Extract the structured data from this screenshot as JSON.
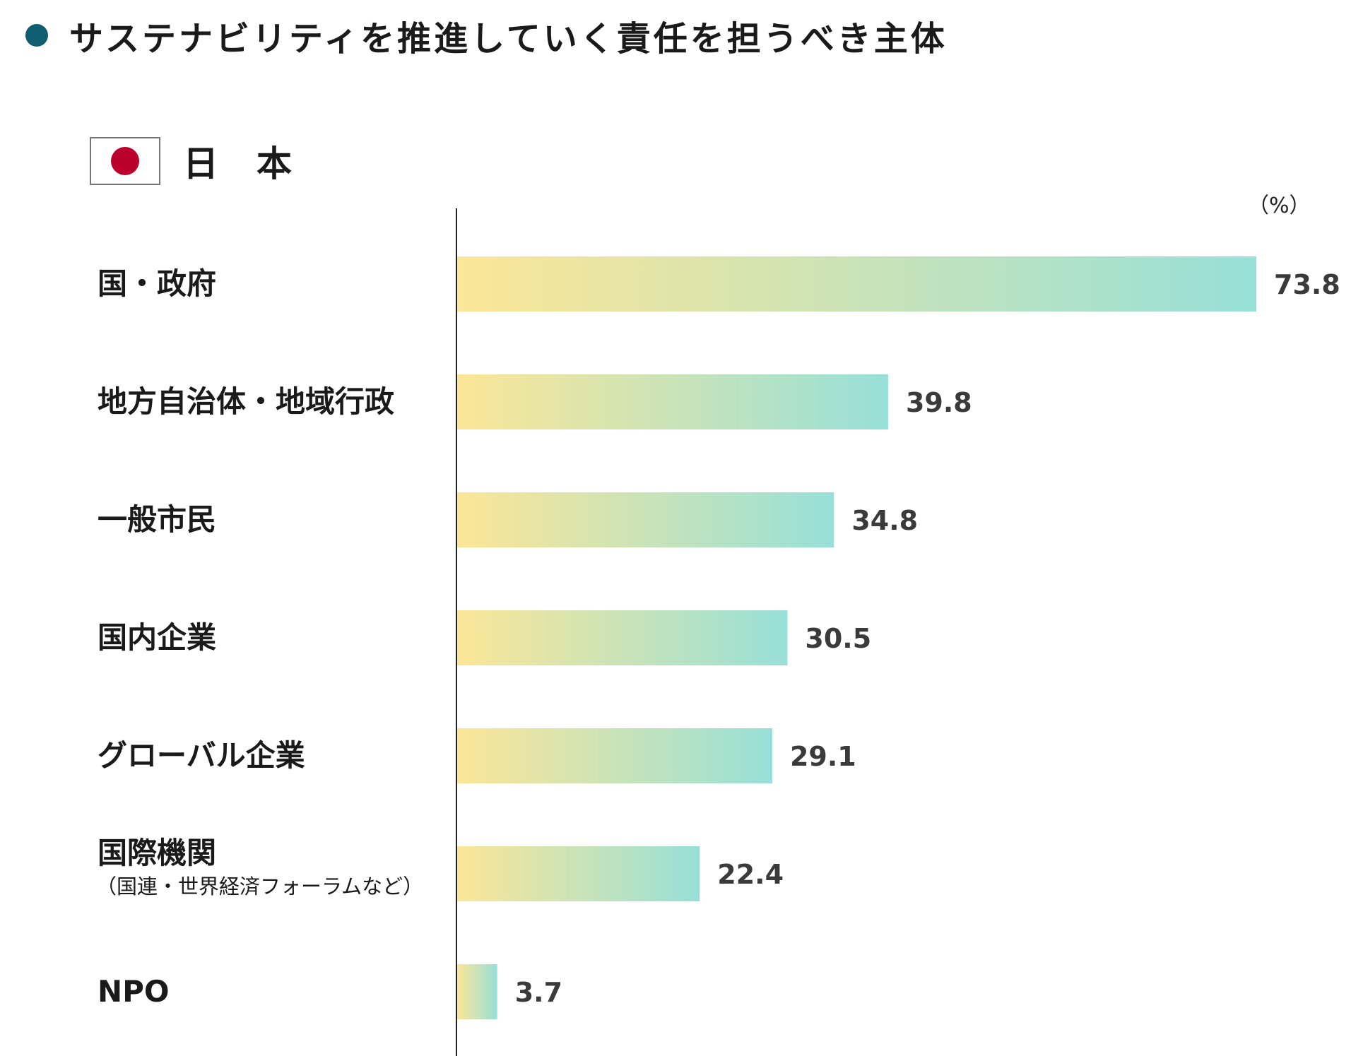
{
  "header": {
    "title": "サステナビリティを推進していく責任を担うべき主体",
    "accent_color": "#0e5e6f",
    "country": "日本",
    "flag_icon": "japan-flag-icon",
    "flag_color": "#bc002d"
  },
  "chart_data": {
    "type": "bar",
    "orientation": "horizontal",
    "unit_label": "（%）",
    "categories": [
      "国・政府",
      "地方自治体・地域行政",
      "一般市民",
      "国内企業",
      "グローバル企業",
      "国際機関",
      "NPO"
    ],
    "category_notes": [
      "",
      "",
      "",
      "",
      "",
      "（国連・世界経済フォーラムなど）",
      ""
    ],
    "values": [
      73.8,
      39.8,
      34.8,
      30.5,
      29.1,
      22.4,
      3.7
    ],
    "value_labels": [
      "73.8",
      "39.8",
      "34.8",
      "30.5",
      "29.1",
      "22.4",
      "3.7"
    ],
    "bar_gradient": [
      "#fce697",
      "#97e0d8"
    ],
    "value_label_color": "#3a3a3a",
    "axis_color": "#222222",
    "xlim": [
      0,
      73.8
    ],
    "grid": false,
    "legend": "none"
  }
}
